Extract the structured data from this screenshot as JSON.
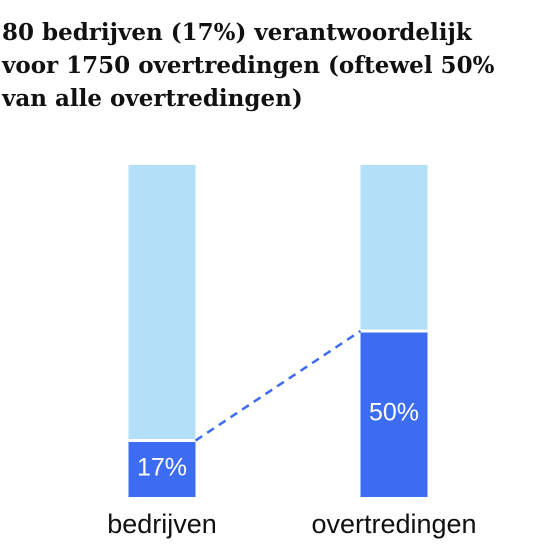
{
  "chart_data": {
    "type": "stacked_bar",
    "title": [
      "80 bedrijven (17%) verantwoordelijk",
      "voor 1750 overtredingen (oftewel 50%",
      "van alle overtredingen)"
    ],
    "categories": [
      "bedrijven",
      "overtredingen"
    ],
    "series": [
      {
        "color": "#3b6cf2",
        "values": [
          17,
          50
        ],
        "value_labels": [
          "17%",
          "50%"
        ]
      },
      {
        "color": "#b3e0f8",
        "values": [
          83,
          50
        ]
      }
    ],
    "ylim": [
      0,
      100
    ]
  }
}
